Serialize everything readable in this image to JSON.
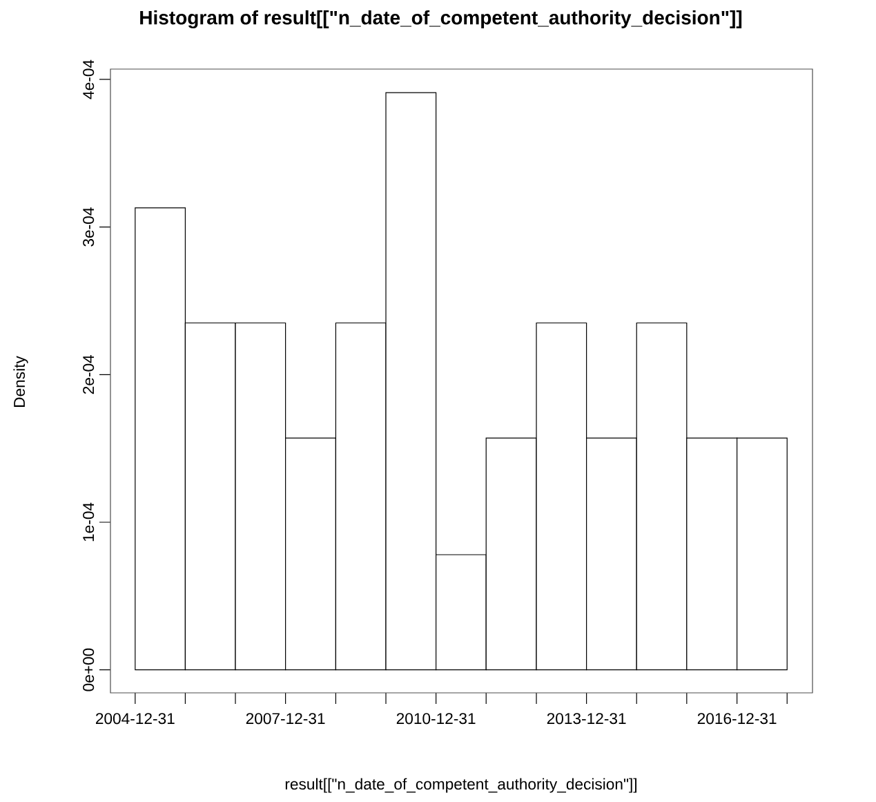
{
  "chart_data": {
    "type": "histogram",
    "title": "Histogram of result[[\"n_date_of_competent_authority_decision\"]]",
    "xlabel": "result[[\"n_date_of_competent_authority_decision\"]]",
    "ylabel": "Density",
    "bins": [
      "2004-12-31",
      "2005-12-31",
      "2006-12-31",
      "2007-12-31",
      "2008-12-31",
      "2009-12-31",
      "2010-12-31",
      "2011-12-31",
      "2012-12-31",
      "2013-12-31",
      "2014-12-31",
      "2015-12-31",
      "2016-12-31",
      "2017-12-31"
    ],
    "values": [
      0.000313,
      0.000235,
      0.000235,
      0.000157,
      0.000235,
      0.000391,
      7.8e-05,
      0.000157,
      0.000235,
      0.000157,
      0.000235,
      0.000157,
      0.000157
    ],
    "color": "#ffffff",
    "xlim": [
      "2004-07-04",
      "2018-07-04"
    ],
    "ylim": [
      -1.56e-05,
      0.000407
    ],
    "xticks": [
      {
        "value": "2004-12-31",
        "label": "2004-12-31"
      },
      {
        "value": "2005-12-31",
        "label": null
      },
      {
        "value": "2006-12-31",
        "label": null
      },
      {
        "value": "2007-12-31",
        "label": "2007-12-31"
      },
      {
        "value": "2008-12-31",
        "label": null
      },
      {
        "value": "2009-12-31",
        "label": null
      },
      {
        "value": "2010-12-31",
        "label": "2010-12-31"
      },
      {
        "value": "2011-12-31",
        "label": null
      },
      {
        "value": "2012-12-31",
        "label": null
      },
      {
        "value": "2013-12-31",
        "label": "2013-12-31"
      },
      {
        "value": "2014-12-31",
        "label": null
      },
      {
        "value": "2015-12-31",
        "label": null
      },
      {
        "value": "2016-12-31",
        "label": "2016-12-31"
      },
      {
        "value": "2017-12-31",
        "label": null
      }
    ],
    "yticks": [
      {
        "value": 0,
        "label": "0e+00"
      },
      {
        "value": 0.0001,
        "label": "1e-04"
      },
      {
        "value": 0.0002,
        "label": "2e-04"
      },
      {
        "value": 0.0003,
        "label": "3e-04"
      },
      {
        "value": 0.0004,
        "label": "4e-04"
      }
    ],
    "tick_labels": true
  }
}
